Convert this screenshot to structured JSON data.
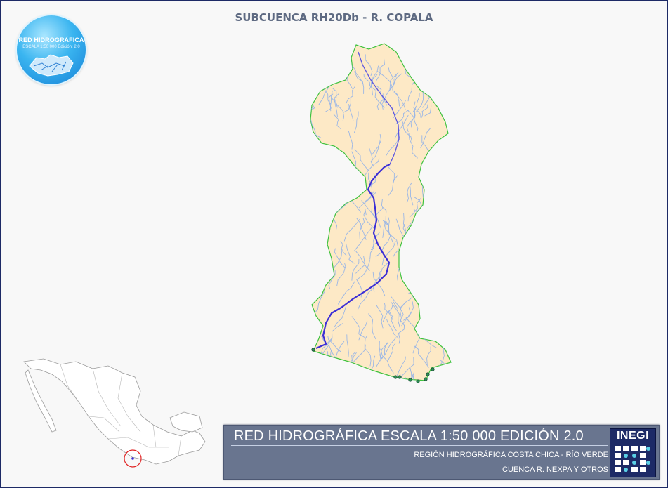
{
  "title": "SUBCUENCA RH20Db - R. COPALA",
  "logo": {
    "title": "RED HIDROGRÁFICA",
    "subtitle": "ESCALA 1:50 000 Edición: 2.0"
  },
  "banner": {
    "title": "RED HIDROGRÁFICA ESCALA 1:50 000 EDICIÓN 2.0",
    "line1": "REGIÓN HIDROGRÁFICA COSTA CHICA - RÍO VERDE",
    "line2": "CUENCA R. NEXPA Y OTROS",
    "brand": "INEGI"
  },
  "colors": {
    "basin_fill": "#fde9c6",
    "basin_border": "#3ec23e",
    "streams": "#9ab6e6",
    "main_river": "#3c2fd6",
    "frame": "#1d2a66",
    "locator_circle": "#e02020"
  },
  "icons": [
    "basin-map-icon",
    "inegi-logo-icon"
  ]
}
